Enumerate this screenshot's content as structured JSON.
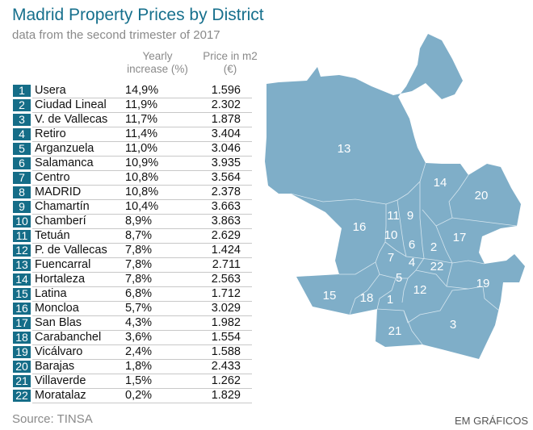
{
  "title": "Madrid Property Prices by District",
  "subtitle": "data from the second trimester of 2017",
  "headers": {
    "increase_line1": "Yearly",
    "increase_line2": "increase  (%)",
    "price_line1": "Price in m2",
    "price_line2": "(€)"
  },
  "colors": {
    "badge": "#156d88",
    "map_fill": "#7faec8",
    "title": "#17708d"
  },
  "rows": [
    {
      "n": "1",
      "name": "Usera",
      "pct": "14,9%",
      "price": "1.596"
    },
    {
      "n": "2",
      "name": "Ciudad Lineal",
      "pct": "11,9%",
      "price": "2.302"
    },
    {
      "n": "3",
      "name": "V. de Vallecas",
      "pct": "11,7%",
      "price": "1.878"
    },
    {
      "n": "4",
      "name": "Retiro",
      "pct": "11,4%",
      "price": "3.404"
    },
    {
      "n": "5",
      "name": "Arganzuela",
      "pct": "11,0%",
      "price": "3.046"
    },
    {
      "n": "6",
      "name": "Salamanca",
      "pct": "10,9%",
      "price": "3.935"
    },
    {
      "n": "7",
      "name": "Centro",
      "pct": "10,8%",
      "price": "3.564"
    },
    {
      "n": "8",
      "name": "MADRID",
      "pct": "10,8%",
      "price": "2.378"
    },
    {
      "n": "9",
      "name": "Chamartín",
      "pct": "10,4%",
      "price": "3.663"
    },
    {
      "n": "10",
      "name": "Chamberí",
      "pct": "8,9%",
      "price": "3.863"
    },
    {
      "n": "11",
      "name": "Tetuán",
      "pct": "8,7%",
      "price": "2.629"
    },
    {
      "n": "12",
      "name": "P. de Vallecas",
      "pct": "7,8%",
      "price": "1.424"
    },
    {
      "n": "13",
      "name": "Fuencarral",
      "pct": "7,8%",
      "price": "2.711"
    },
    {
      "n": "14",
      "name": "Hortaleza",
      "pct": "7,8%",
      "price": "2.563"
    },
    {
      "n": "15",
      "name": "Latina",
      "pct": "6,8%",
      "price": "1.712"
    },
    {
      "n": "16",
      "name": "Moncloa",
      "pct": "5,7%",
      "price": "3.029"
    },
    {
      "n": "17",
      "name": "San Blas",
      "pct": "4,3%",
      "price": "1.982"
    },
    {
      "n": "18",
      "name": "Carabanchel",
      "pct": "3,6%",
      "price": "1.554"
    },
    {
      "n": "19",
      "name": "Vicálvaro",
      "pct": "2,4%",
      "price": "1.588"
    },
    {
      "n": "20",
      "name": "Barajas",
      "pct": "1,8%",
      "price": "2.433"
    },
    {
      "n": "21",
      "name": "Villaverde",
      "pct": "1,5%",
      "price": "1.262"
    },
    {
      "n": "22",
      "name": "Moratalaz",
      "pct": "0,2%",
      "price": "1.829"
    }
  ],
  "map_labels": [
    "13",
    "14",
    "20",
    "16",
    "11",
    "9",
    "10",
    "6",
    "2",
    "17",
    "7",
    "4",
    "22",
    "19",
    "5",
    "12",
    "15",
    "18",
    "1",
    "21",
    "3"
  ],
  "source": "Source: TINSA",
  "credit": "EM GRÁFICOS"
}
